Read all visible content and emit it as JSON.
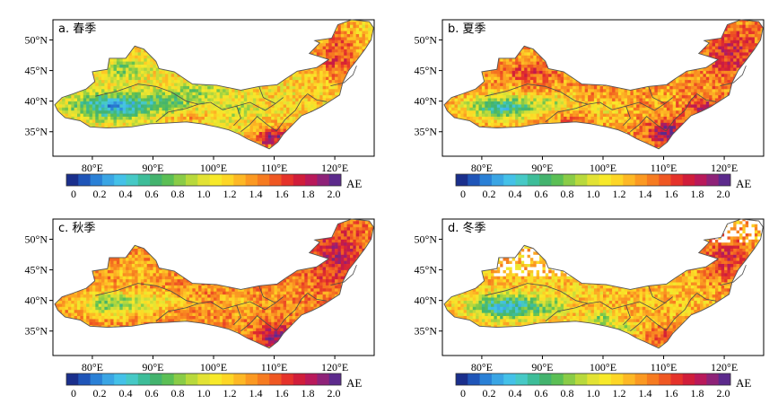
{
  "panels": [
    {
      "label": "a. 春季",
      "lat_ticks": [
        "50°N",
        "45°N",
        "40°N",
        "35°N"
      ],
      "lon_ticks": [
        "80°E",
        "90°E",
        "100°E",
        "110°E",
        "120°E"
      ],
      "tint": "#7fc47a",
      "colorbar_ticks": [
        "0",
        "0.2",
        "0.4",
        "0.6",
        "0.8",
        "1.0",
        "1.2",
        "1.4",
        "1.6",
        "1.8",
        "2.0"
      ],
      "colorbar_unit": "AE"
    },
    {
      "label": "b. 夏季",
      "lat_ticks": [
        "50°N",
        "45°N",
        "40°N",
        "35°N"
      ],
      "lon_ticks": [
        "80°E",
        "90°E",
        "100°E",
        "110°E",
        "120°E"
      ],
      "tint": "#f07a2a",
      "colorbar_ticks": [
        "0",
        "0.2",
        "0.4",
        "0.6",
        "0.8",
        "1.0",
        "1.2",
        "1.4",
        "1.6",
        "1.8",
        "2.0"
      ],
      "colorbar_unit": "AE"
    },
    {
      "label": "c. 秋季",
      "lat_ticks": [
        "50°N",
        "45°N",
        "40°N",
        "35°N"
      ],
      "lon_ticks": [
        "80°E",
        "90°E",
        "100°E",
        "110°E",
        "120°E"
      ],
      "tint": "#f08a2c",
      "colorbar_ticks": [
        "0",
        "0.2",
        "0.4",
        "0.6",
        "0.8",
        "1.0",
        "1.2",
        "1.4",
        "1.6",
        "1.8",
        "2.0"
      ],
      "colorbar_unit": "AE"
    },
    {
      "label": "d. 冬季",
      "lat_ticks": [
        "50°N",
        "45°N",
        "40°N",
        "35°N"
      ],
      "lon_ticks": [
        "80°E",
        "90°E",
        "100°E",
        "110°E",
        "120°E"
      ],
      "tint": "#f59a30",
      "colorbar_ticks": [
        "0",
        "0.2",
        "0.4",
        "0.6",
        "0.8",
        "1.0",
        "1.2",
        "1.4",
        "1.6",
        "1.8",
        "2.0"
      ],
      "colorbar_unit": "AE"
    }
  ],
  "colors": {
    "ramp": [
      "#1a2f8c",
      "#1f55b8",
      "#2a80d6",
      "#3aa5e4",
      "#44c1e8",
      "#46c9c6",
      "#3dbd99",
      "#43b36e",
      "#5bbf55",
      "#8acc47",
      "#b8d93c",
      "#e2e234",
      "#f7e92a",
      "#fdd626",
      "#fdb825",
      "#fb9922",
      "#f67b20",
      "#ef5722",
      "#e5322a",
      "#d01d3a",
      "#b9195a",
      "#8e2278",
      "#5c2a8c"
    ],
    "desert_blue": "#5aaee2",
    "basin_blue": "#44a3e0",
    "green": "#54b95c",
    "orange": "#f4882a",
    "red": "#e4332a",
    "border": "#4a4a4a"
  }
}
